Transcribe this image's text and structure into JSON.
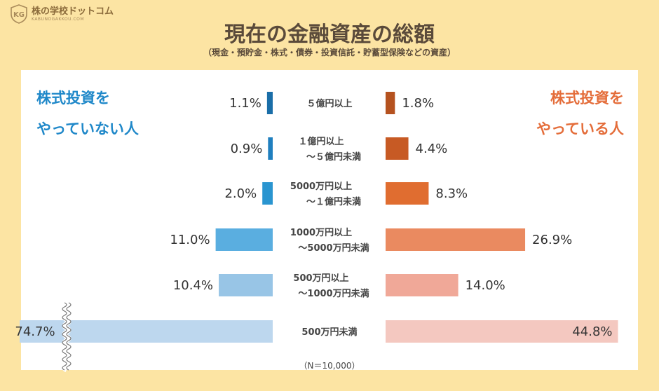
{
  "brand": {
    "name": "株の学校ドットコム",
    "url_text": "KABUNOGAKKOU.COM"
  },
  "title": "現在の金融資産の総額",
  "subtitle": "（現金・預貯金・株式・債券・投資信託・貯蓄型保険などの資産）",
  "left_label": {
    "line1": "株式投資を",
    "line2": "やっていない人"
  },
  "right_label": {
    "line1": "株式投資を",
    "line2": "やっている人"
  },
  "note": "（N＝10,000）",
  "colors": {
    "background": "#fce4a3",
    "left_bars": [
      "#1a6ea8",
      "#1f7fbf",
      "#2a95d0",
      "#5aaee0",
      "#98c5e6",
      "#bdd7ee"
    ],
    "right_bars": [
      "#b5521f",
      "#c75a24",
      "#e06d30",
      "#ea8a60",
      "#f0a898",
      "#f4c8c0"
    ]
  },
  "chart_data": {
    "type": "bar",
    "orientation": "horizontal-butterfly",
    "unit": "%",
    "categories": [
      [
        "５億円以上"
      ],
      [
        "１億円以上",
        "～５億円未満"
      ],
      [
        "5000万円以上",
        "～１億円未満"
      ],
      [
        "1000万円以上",
        "～5000万円未満"
      ],
      [
        "500万円以上",
        "～1000万円未満"
      ],
      [
        "500万円未満"
      ]
    ],
    "series": [
      {
        "name": "株式投資をやっていない人",
        "values": [
          1.1,
          0.9,
          2.0,
          11.0,
          10.4,
          74.7
        ],
        "labels": [
          "1.1%",
          "0.9%",
          "2.0%",
          "11.0%",
          "10.4%",
          "74.7%"
        ]
      },
      {
        "name": "株式投資をやっている人",
        "values": [
          1.8,
          4.4,
          8.3,
          26.9,
          14.0,
          44.8
        ],
        "labels": [
          "1.8%",
          "4.4%",
          "8.3%",
          "26.9%",
          "14.0%",
          "44.8%"
        ]
      }
    ],
    "axis_break_on_last_bar": "left"
  }
}
